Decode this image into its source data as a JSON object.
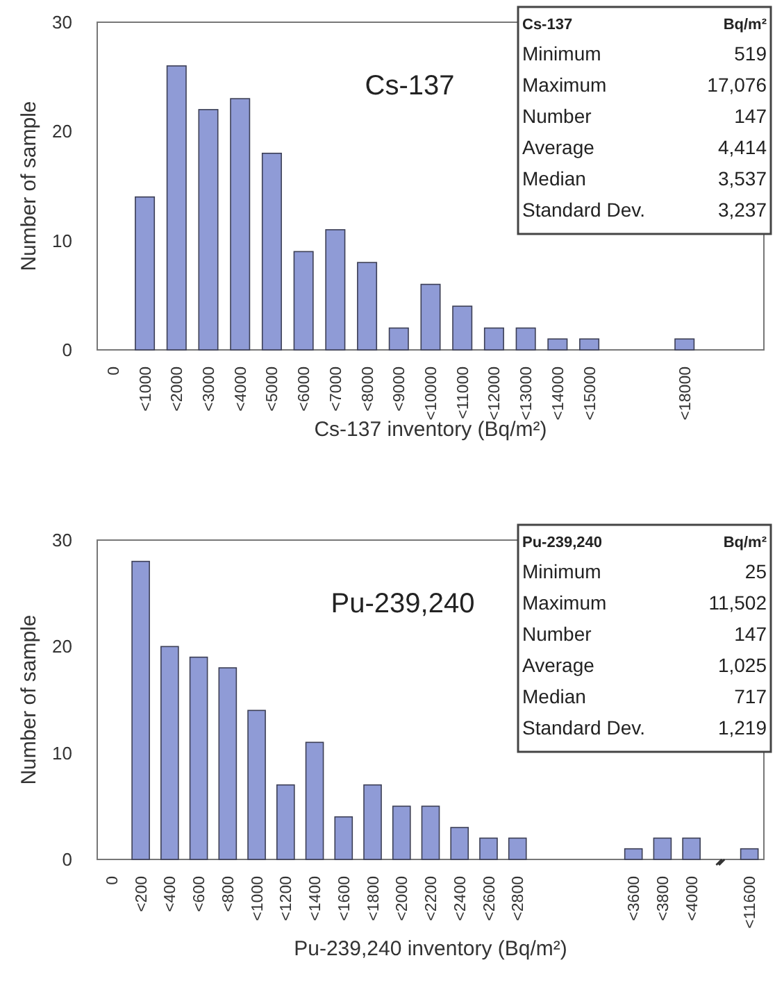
{
  "chart_data": [
    {
      "type": "bar",
      "title": "Cs-137",
      "xlabel": "Cs-137 inventory (Bq/m²)",
      "ylabel": "Number of sample",
      "categories": [
        "0",
        "<1000",
        "<2000",
        "<3000",
        "<4000",
        "<5000",
        "<6000",
        "<7000",
        "<8000",
        "<9000",
        "<10000",
        "<11000",
        "<12000",
        "<13000",
        "<14000",
        "<15000",
        null,
        null,
        "<18000",
        null,
        null
      ],
      "values": [
        0,
        14,
        26,
        22,
        23,
        18,
        9,
        11,
        8,
        2,
        6,
        4,
        2,
        2,
        1,
        1,
        0,
        0,
        1,
        0,
        0
      ],
      "color": "#8f9bd6",
      "ylim": [
        0,
        30
      ],
      "yticks": [
        0,
        10,
        20,
        30
      ],
      "annotations": [
        "Cs-137",
        "Bq/m²",
        "Minimum",
        "519",
        "Maximum",
        "17,076",
        "Number",
        "147",
        "Average",
        "4,414",
        "Median",
        "3,537",
        "Standard Dev.",
        "3,237"
      ]
    },
    {
      "type": "bar",
      "title": "Pu-239,240",
      "xlabel": "Pu-239,240 inventory (Bq/m²)",
      "ylabel": "Number of sample",
      "categories": [
        "0",
        "<200",
        "<400",
        "<600",
        "<800",
        "<1000",
        "<1200",
        "<1400",
        "<1600",
        "<1800",
        "<2000",
        "<2200",
        "<2400",
        "<2600",
        "<2800",
        null,
        null,
        null,
        "<3600",
        "<3800",
        "<4000",
        null,
        "<11600"
      ],
      "values": [
        0,
        28,
        20,
        19,
        18,
        14,
        7,
        11,
        4,
        7,
        5,
        5,
        3,
        2,
        2,
        0,
        0,
        0,
        1,
        2,
        2,
        0,
        1
      ],
      "color": "#8f9bd6",
      "ylim": [
        0,
        30
      ],
      "yticks": [
        0,
        10,
        20,
        30
      ],
      "annotations": [
        "Pu-239,240",
        "Bq/m²",
        "Minimum",
        "25",
        "Maximum",
        "11,502",
        "Number",
        "147",
        "Average",
        "1,025",
        "Median",
        "717",
        "Standard Dev.",
        "1,219"
      ]
    }
  ]
}
